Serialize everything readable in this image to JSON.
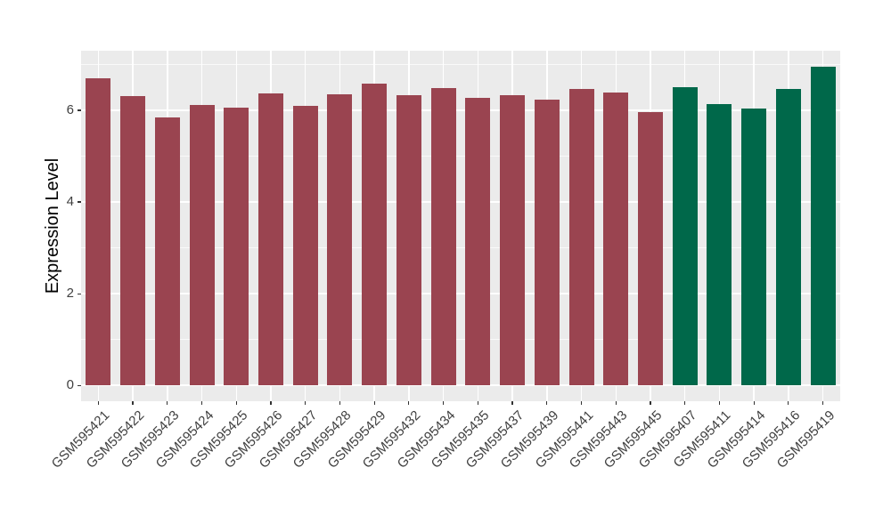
{
  "figure": {
    "background": "#FFFFFF",
    "panel_background": "#EBEBEB",
    "major_grid_color": "#FFFFFF",
    "minor_grid_color": "#FFFFFF",
    "tick_mark_color": "#333333",
    "tick_label_color": "#404040",
    "axis_title_color": "#000000"
  },
  "chart_data": {
    "type": "bar",
    "title": "",
    "xlabel": "",
    "ylabel": "Expression Level",
    "ylim": [
      0,
      7.3
    ],
    "yticks": [
      0,
      2,
      4,
      6
    ],
    "minor_yticks": [
      1,
      3,
      5,
      7
    ],
    "grid": true,
    "legend_position": "none",
    "categories": [
      "GSM595421",
      "GSM595422",
      "GSM595423",
      "GSM595424",
      "GSM595425",
      "GSM595426",
      "GSM595427",
      "GSM595428",
      "GSM595429",
      "GSM595432",
      "GSM595434",
      "GSM595435",
      "GSM595437",
      "GSM595439",
      "GSM595441",
      "GSM595443",
      "GSM595445",
      "GSM595407",
      "GSM595411",
      "GSM595414",
      "GSM595416",
      "GSM595419"
    ],
    "values": [
      6.7,
      6.31,
      5.84,
      6.12,
      6.06,
      6.37,
      6.1,
      6.35,
      6.58,
      6.33,
      6.49,
      6.27,
      6.33,
      6.23,
      6.47,
      6.39,
      5.96,
      6.5,
      6.14,
      6.04,
      6.47,
      6.95
    ],
    "groups": [
      "group-1",
      "group-1",
      "group-1",
      "group-1",
      "group-1",
      "group-1",
      "group-1",
      "group-1",
      "group-1",
      "group-1",
      "group-1",
      "group-1",
      "group-1",
      "group-1",
      "group-1",
      "group-1",
      "group-1",
      "group-2",
      "group-2",
      "group-2",
      "group-2",
      "group-2"
    ],
    "group_colors": {
      "group-1": "#9A4450",
      "group-2": "#00684A"
    }
  }
}
